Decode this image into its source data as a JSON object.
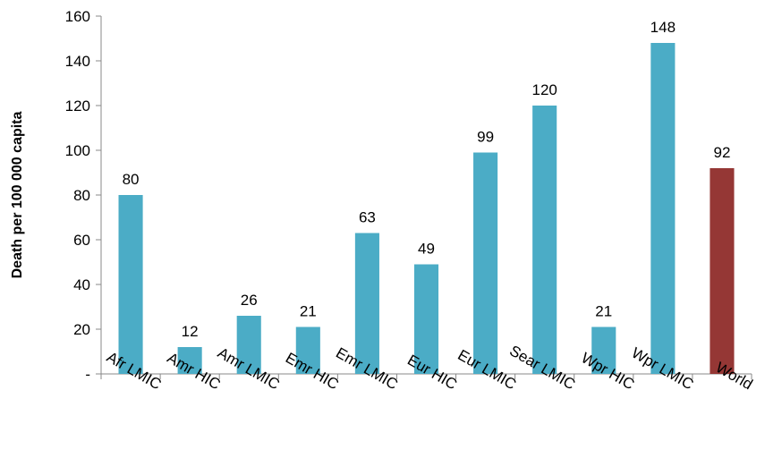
{
  "chart_data": {
    "type": "bar",
    "title": "",
    "xlabel": "",
    "ylabel": "Death per 100 000 capita",
    "ylim": [
      0,
      160
    ],
    "yticks": [
      0,
      20,
      40,
      60,
      80,
      100,
      120,
      140,
      160
    ],
    "ytick_labels": [
      "-",
      "20",
      "40",
      "60",
      "80",
      "100",
      "120",
      "140",
      "160"
    ],
    "categories": [
      "Afr LMIC",
      "Amr HIC",
      "Amr LMIC",
      "Emr HIC",
      "Emr LMIC",
      "Eur HIC",
      "Eur LMIC",
      "Sear LMIC",
      "Wpr HIC",
      "Wpr LMIC",
      "World"
    ],
    "values": [
      80,
      12,
      26,
      21,
      63,
      49,
      99,
      120,
      21,
      148,
      92
    ],
    "data_labels": [
      "80",
      "12",
      "26",
      "21",
      "63",
      "49",
      "99",
      "120",
      "21",
      "148",
      "92"
    ],
    "bar_colors": [
      "#4bacc6",
      "#4bacc6",
      "#4bacc6",
      "#4bacc6",
      "#4bacc6",
      "#4bacc6",
      "#4bacc6",
      "#4bacc6",
      "#4bacc6",
      "#4bacc6",
      "#953735"
    ],
    "gridlines": false,
    "legend": "none"
  }
}
